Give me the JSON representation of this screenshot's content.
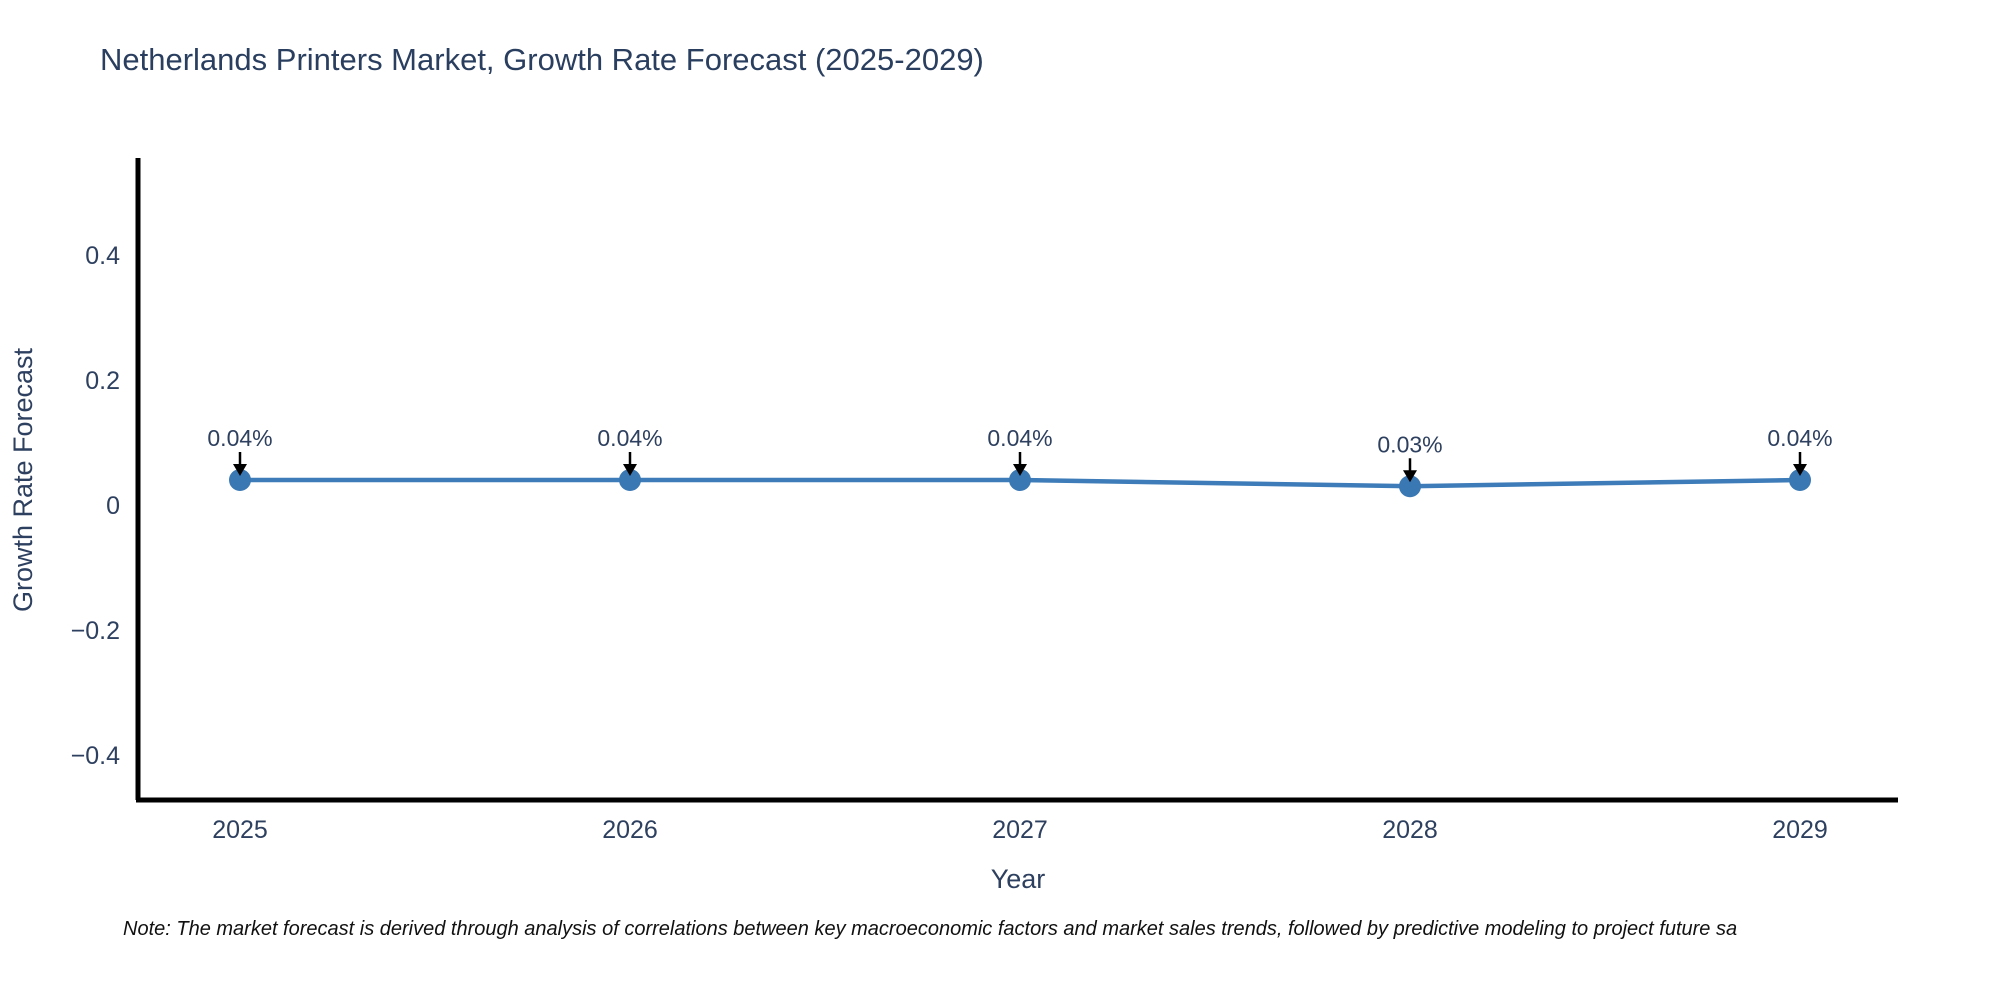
{
  "title": "Netherlands Printers Market, Growth Rate Forecast (2025-2029)",
  "note": "Note: The market forecast is derived through analysis of correlations between key macroeconomic factors and market sales trends, followed by predictive modeling to project future sa",
  "chart_data": {
    "type": "line",
    "title": "Netherlands Printers Market, Growth Rate Forecast (2025-2029)",
    "xlabel": "Year",
    "ylabel": "Growth Rate Forecast",
    "x": [
      2025,
      2026,
      2027,
      2028,
      2029
    ],
    "values": [
      0.04,
      0.04,
      0.04,
      0.03,
      0.04
    ],
    "point_labels": [
      "0.04%",
      "0.04%",
      "0.04%",
      "0.03%",
      "0.04%"
    ],
    "x_tick_labels": [
      "2025",
      "2026",
      "2027",
      "2028",
      "2029"
    ],
    "yticks": [
      0.4,
      0.2,
      0,
      -0.2,
      -0.4
    ],
    "ytick_labels": [
      "0.4",
      "0.2",
      "0",
      "−0.2",
      "−0.4"
    ],
    "ylim": [
      -0.47,
      0.55
    ],
    "grid": false,
    "legend": false,
    "line_color": "#3d7cb8",
    "marker_color": "#3a78b4",
    "arrow_color": "#000000",
    "spine_color": "#000000",
    "text_color": "#2e405f"
  }
}
